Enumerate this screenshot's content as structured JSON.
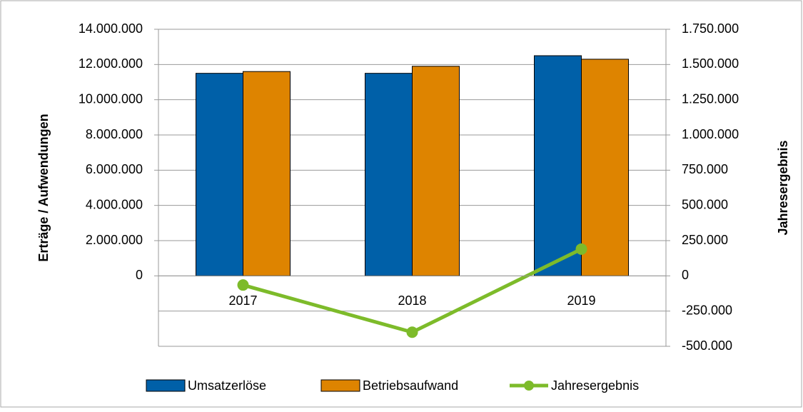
{
  "chart_data": {
    "type": "bar",
    "categories": [
      "2017",
      "2018",
      "2019"
    ],
    "series": [
      {
        "name": "Umsatzerlöse",
        "color": "#0060a8",
        "values": [
          11500000,
          11500000,
          12500000
        ]
      },
      {
        "name": "Betriebsaufwand",
        "color": "#de8400",
        "values": [
          11600000,
          11900000,
          12300000
        ]
      },
      {
        "name": "Jahresergebnis",
        "color": "#7dbb2a",
        "type": "line",
        "axis": "y2",
        "values": [
          -65000,
          -400000,
          190000
        ]
      }
    ],
    "ylabel": "Erträge / Aufwendungen",
    "y2label": "Jahresergebnis",
    "ylim": [
      -4000000,
      14000000
    ],
    "yticks": [
      0,
      {
        "value": 2000000,
        "label": "2.000.000"
      },
      {
        "value": 4000000,
        "label": "4.000.000"
      },
      {
        "value": 6000000,
        "label": "6.000.000"
      },
      {
        "value": 8000000,
        "label": "8.000.000"
      },
      {
        "value": 10000000,
        "label": "10.000.000"
      },
      {
        "value": 12000000,
        "label": "12.000.000"
      },
      {
        "value": 14000000,
        "label": "14.000.000"
      }
    ],
    "y2lim": [
      -500000,
      1750000
    ],
    "y2ticks": [
      {
        "value": -500000,
        "label": "-500.000"
      },
      {
        "value": -250000,
        "label": "-250.000"
      },
      0,
      {
        "value": 250000,
        "label": "250.000"
      },
      {
        "value": 500000,
        "label": "500.000"
      },
      {
        "value": 750000,
        "label": "750.000"
      },
      {
        "value": 1000000,
        "label": "1.000.000"
      },
      {
        "value": 1250000,
        "label": "1.250.000"
      },
      {
        "value": 1500000,
        "label": "1.500.000"
      },
      {
        "value": 1750000,
        "label": "1.750.000"
      }
    ],
    "grid": true,
    "legend": "bottom"
  }
}
